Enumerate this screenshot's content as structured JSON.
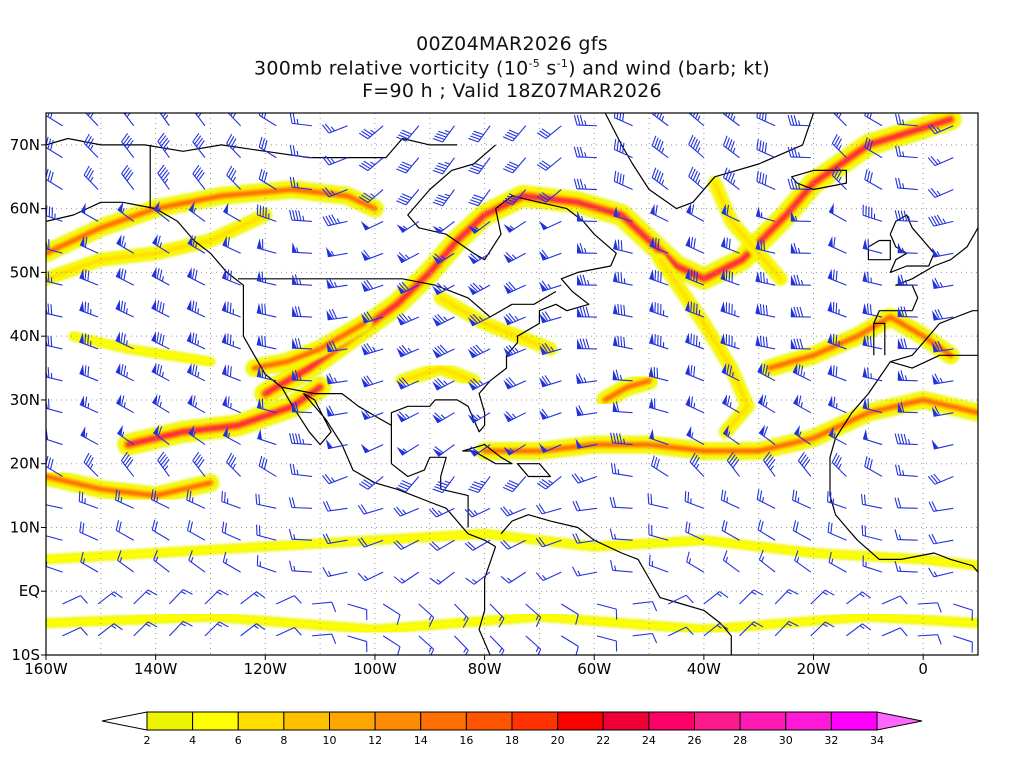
{
  "header": {
    "line1": "00Z04MAR2026 gfs",
    "line2_pre": "300mb relative vorticity (10",
    "line2_sup1": "-5",
    "line2_mid": " s",
    "line2_sup2": "-1",
    "line2_post": ") and wind (barb; kt)",
    "line3": "F=90 h ; Valid 18Z07MAR2026"
  },
  "map": {
    "lon_range": [
      -160,
      10
    ],
    "lat_range": [
      -10,
      75
    ],
    "lon_ticks": [
      {
        "value": -160,
        "label": "160W"
      },
      {
        "value": -140,
        "label": "140W"
      },
      {
        "value": -120,
        "label": "120W"
      },
      {
        "value": -100,
        "label": "100W"
      },
      {
        "value": -80,
        "label": "80W"
      },
      {
        "value": -60,
        "label": "60W"
      },
      {
        "value": -40,
        "label": "40W"
      },
      {
        "value": -20,
        "label": "20W"
      },
      {
        "value": 0,
        "label": "0"
      }
    ],
    "lat_ticks": [
      {
        "value": 70,
        "label": "70N"
      },
      {
        "value": 60,
        "label": "60N"
      },
      {
        "value": 50,
        "label": "50N"
      },
      {
        "value": 40,
        "label": "40N"
      },
      {
        "value": 30,
        "label": "30N"
      },
      {
        "value": 20,
        "label": "20N"
      },
      {
        "value": 10,
        "label": "10N"
      },
      {
        "value": 0,
        "label": "EQ"
      },
      {
        "value": -10,
        "label": "10S"
      }
    ],
    "grid": "dotted",
    "barb_color": "#2233dd",
    "coast_color": "#000000"
  },
  "colorbar": {
    "levels": [
      "2",
      "4",
      "6",
      "8",
      "10",
      "12",
      "14",
      "16",
      "18",
      "20",
      "22",
      "24",
      "26",
      "28",
      "30",
      "32",
      "34"
    ],
    "colors": [
      "#ffffff",
      "#ecf400",
      "#ffff00",
      "#ffdd00",
      "#ffc000",
      "#ffa500",
      "#ff8c00",
      "#ff7000",
      "#ff5500",
      "#ff3300",
      "#ff0000",
      "#f00038",
      "#ff0066",
      "#ff1a8c",
      "#ff1ab3",
      "#ff1ad9",
      "#ff00ff",
      "#ff66ff"
    ]
  }
}
